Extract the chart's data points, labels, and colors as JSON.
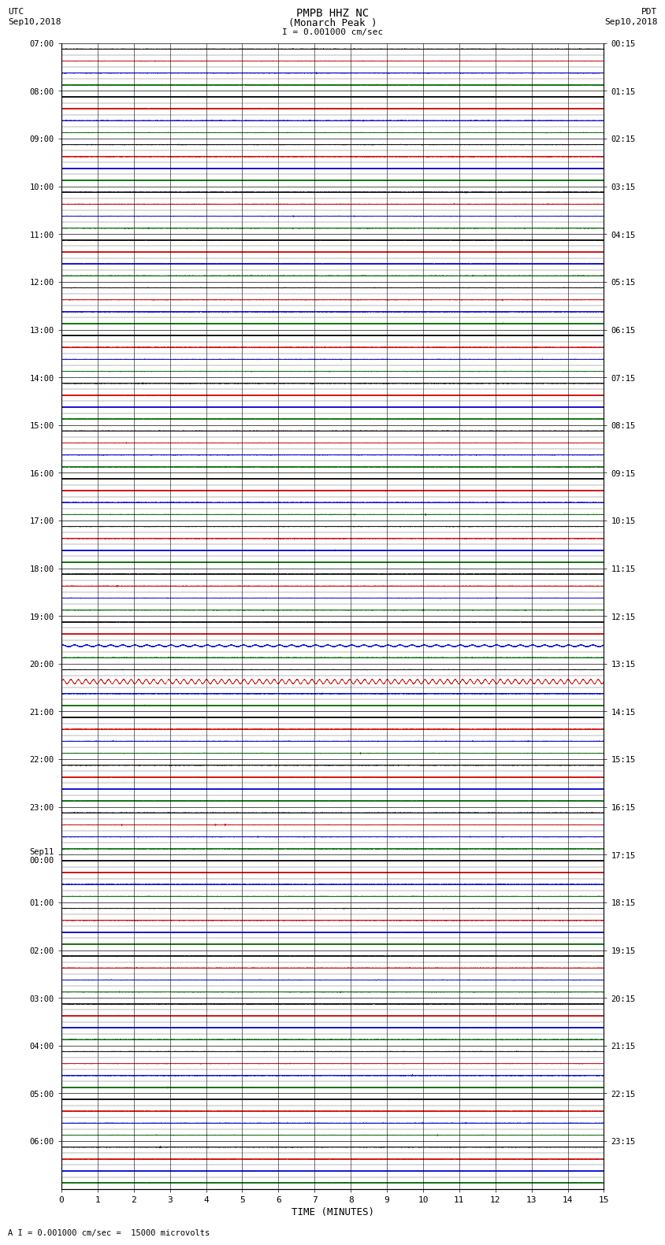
{
  "title_line1": "PMPB HHZ NC",
  "title_line2": "(Monarch Peak )",
  "scale_label": "I = 0.001000 cm/sec",
  "footer_label": "A I = 0.001000 cm/sec =  15000 microvolts",
  "xlabel": "TIME (MINUTES)",
  "utc_label_line1": "UTC",
  "utc_label_line2": "Sep10,2018",
  "pdt_label_line1": "PDT",
  "pdt_label_line2": "Sep10,2018",
  "left_times": [
    "07:00",
    "08:00",
    "09:00",
    "10:00",
    "11:00",
    "12:00",
    "13:00",
    "14:00",
    "15:00",
    "16:00",
    "17:00",
    "18:00",
    "19:00",
    "20:00",
    "21:00",
    "22:00",
    "23:00",
    "Sep11\n00:00",
    "01:00",
    "02:00",
    "03:00",
    "04:00",
    "05:00",
    "06:00"
  ],
  "right_times": [
    "00:15",
    "01:15",
    "02:15",
    "03:15",
    "04:15",
    "05:15",
    "06:15",
    "07:15",
    "08:15",
    "09:15",
    "10:15",
    "11:15",
    "12:15",
    "13:15",
    "14:15",
    "15:15",
    "16:15",
    "17:15",
    "18:15",
    "19:15",
    "20:15",
    "21:15",
    "22:15",
    "23:15"
  ],
  "n_hours": 24,
  "sub_traces": 4,
  "minutes": 15,
  "sample_rate": 50,
  "event_hour": 13,
  "background_color": "#ffffff",
  "sub_trace_colors": [
    "#000000",
    "#cc0000",
    "#0000cc",
    "#006600"
  ],
  "noise_amplitude": 0.012,
  "event_amplitude": 0.18,
  "figsize": [
    8.5,
    16.13
  ]
}
